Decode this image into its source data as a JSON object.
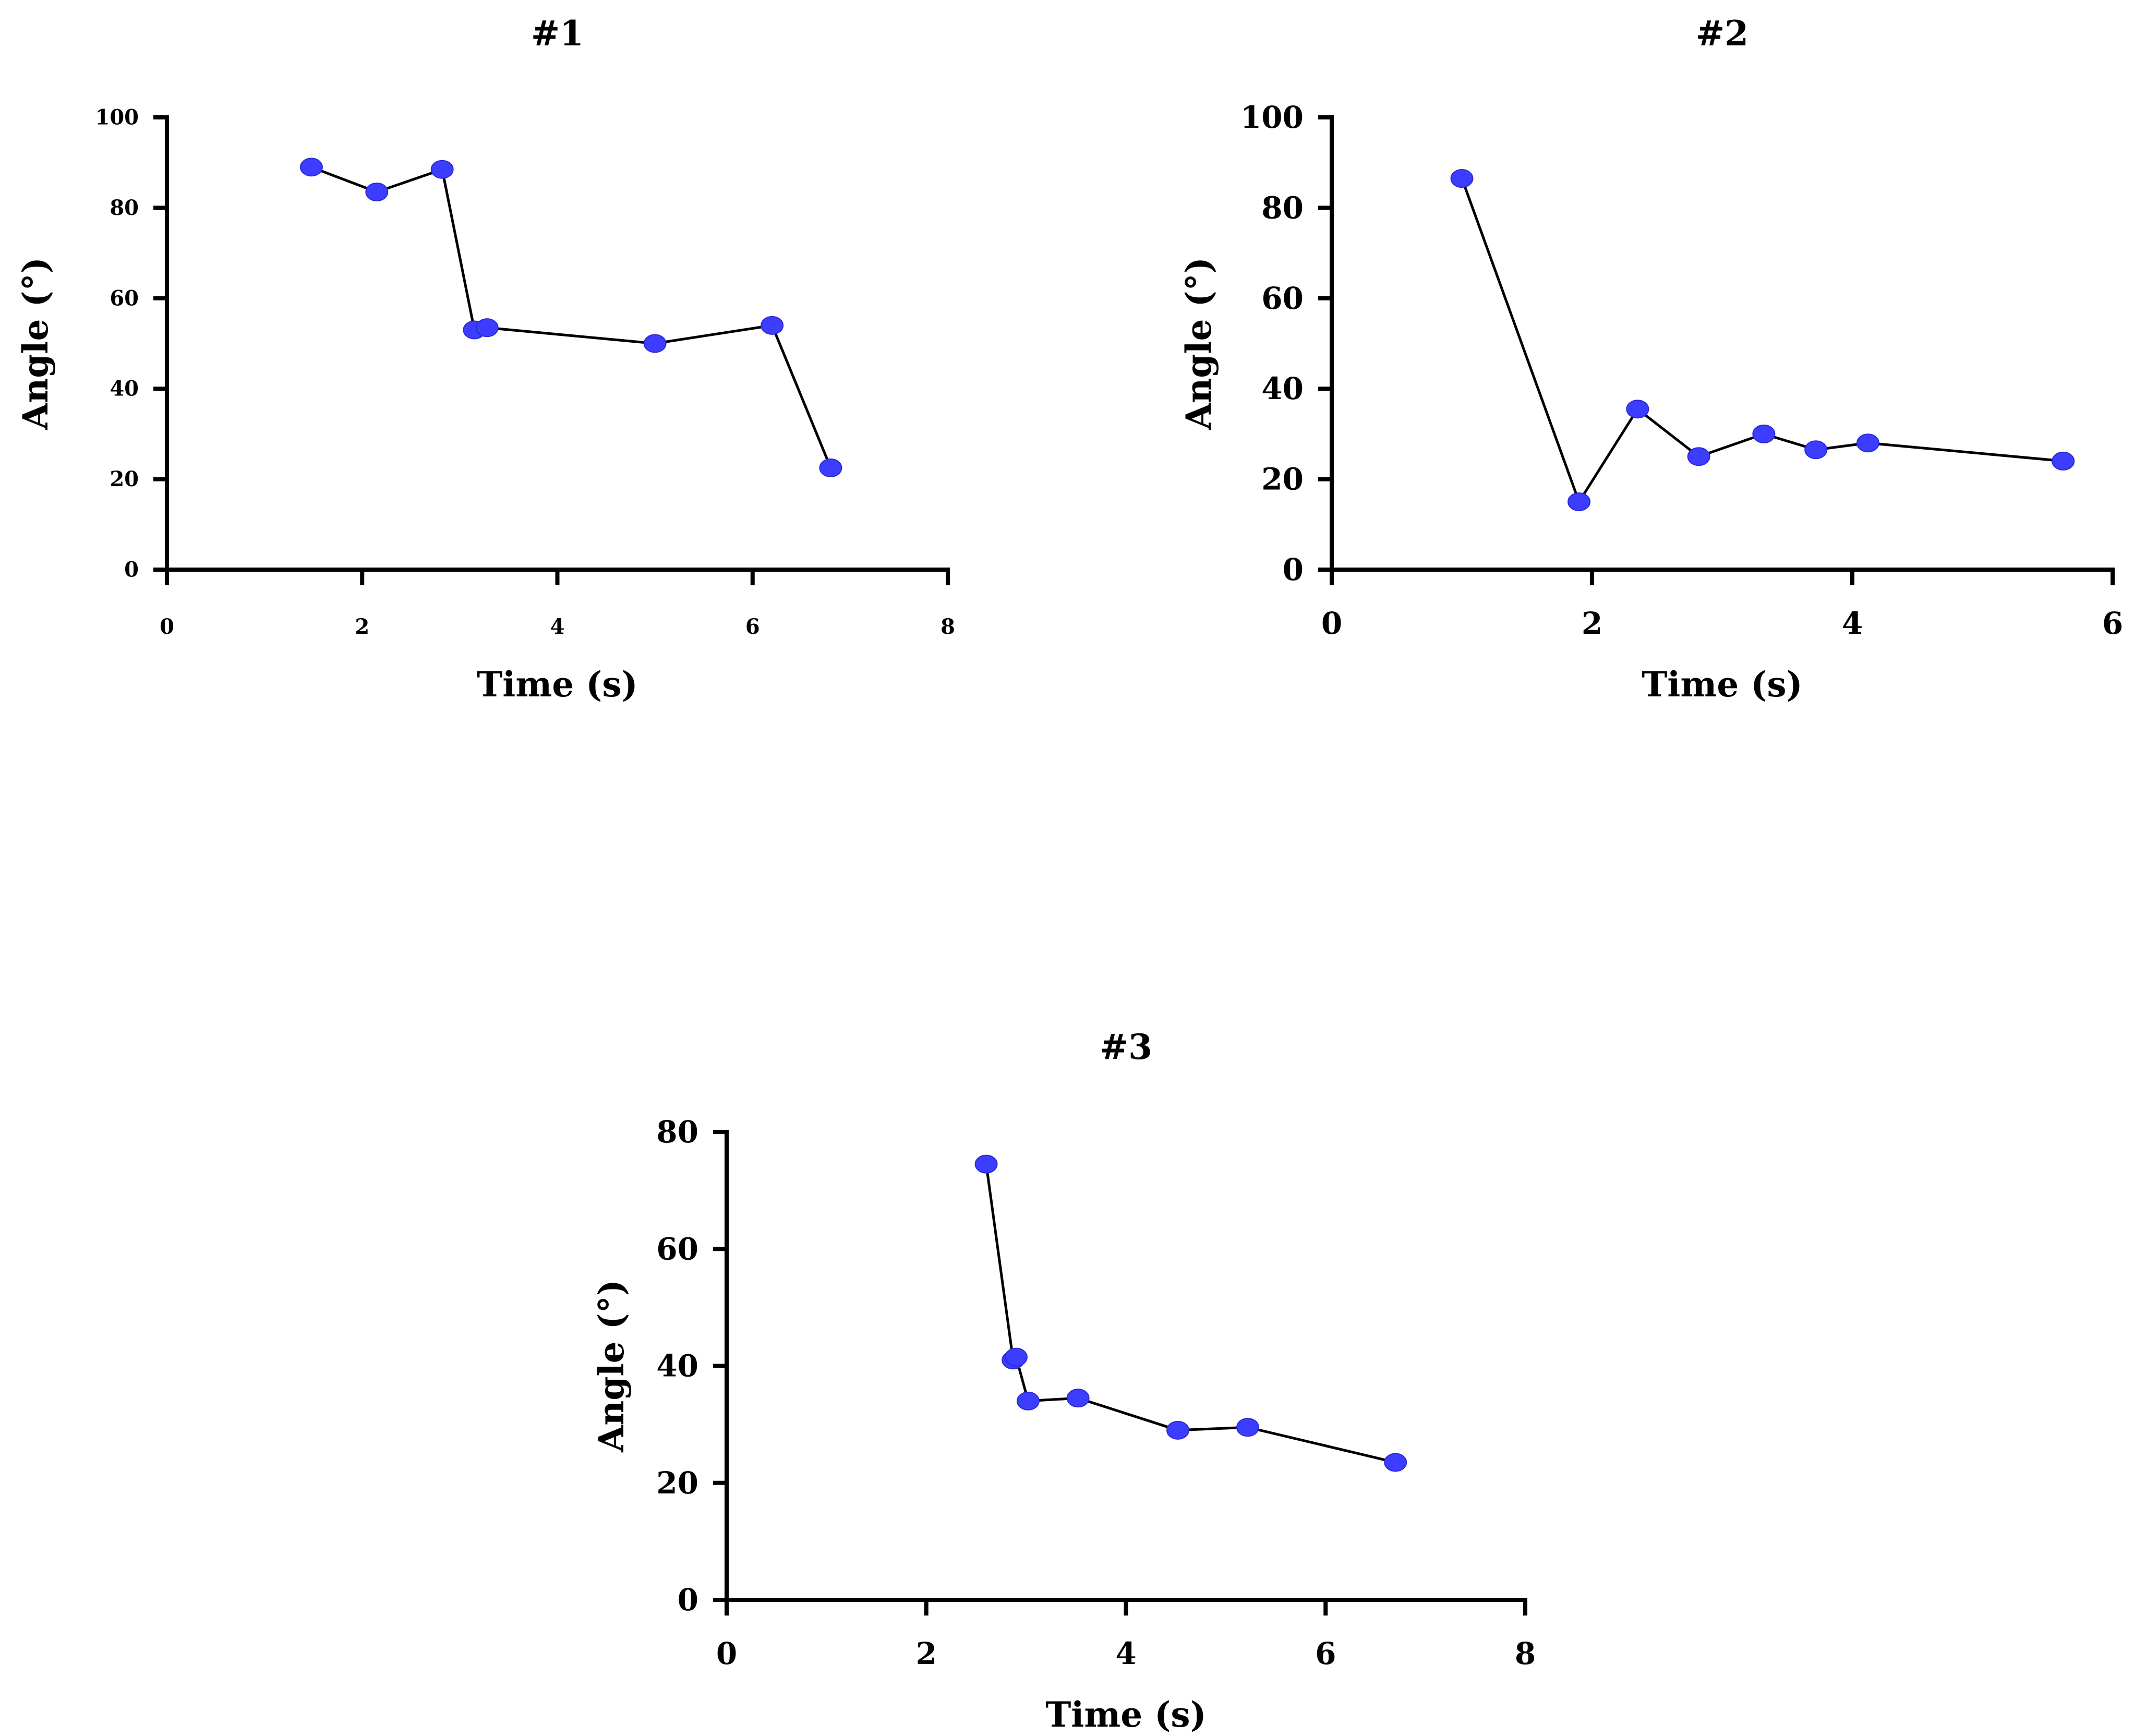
{
  "colors": {
    "marker": "#3d3dff",
    "line": "#000000",
    "axis": "#000000",
    "background": "#ffffff"
  },
  "chart_data": [
    {
      "type": "line",
      "title": "#1",
      "xlabel": "Time (s)",
      "ylabel": "Angle (°)",
      "xlim": [
        0,
        8
      ],
      "ylim": [
        0,
        100
      ],
      "xticks": [
        0,
        2,
        4,
        6,
        8
      ],
      "yticks": [
        0,
        20,
        40,
        60,
        80,
        100
      ],
      "grid": false,
      "series": [
        {
          "name": "#1",
          "x": [
            1.48,
            2.15,
            2.82,
            3.15,
            3.28,
            5.0,
            6.2,
            6.8
          ],
          "y": [
            89,
            83.5,
            88.5,
            53,
            53.5,
            50,
            54,
            22.5
          ]
        }
      ]
    },
    {
      "type": "line",
      "title": "#2",
      "xlabel": "Time (s)",
      "ylabel": "Angle (°)",
      "xlim": [
        0,
        6
      ],
      "ylim": [
        0,
        100
      ],
      "xticks": [
        0,
        2,
        4,
        6
      ],
      "yticks": [
        0,
        20,
        40,
        60,
        80,
        100
      ],
      "grid": false,
      "series": [
        {
          "name": "#2",
          "x": [
            1.0,
            1.9,
            2.35,
            2.82,
            3.32,
            3.72,
            4.12,
            5.62
          ],
          "y": [
            86.5,
            15,
            35.5,
            25,
            30,
            26.5,
            28,
            24
          ]
        }
      ]
    },
    {
      "type": "line",
      "title": "#3",
      "xlabel": "Time (s)",
      "ylabel": "Angle (°)",
      "xlim": [
        0,
        8
      ],
      "ylim": [
        0,
        80
      ],
      "xticks": [
        0,
        2,
        4,
        6,
        8
      ],
      "yticks": [
        0,
        20,
        40,
        60,
        80
      ],
      "grid": false,
      "series": [
        {
          "name": "#3",
          "x": [
            2.6,
            2.87,
            2.9,
            3.02,
            3.52,
            4.52,
            5.22,
            6.7
          ],
          "y": [
            74.5,
            41,
            41.5,
            34,
            34.5,
            29,
            29.5,
            23.5
          ]
        }
      ]
    }
  ]
}
